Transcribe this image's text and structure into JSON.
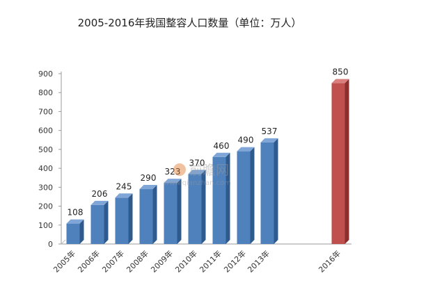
{
  "chart_data": {
    "type": "bar",
    "title": "2005-2016年我国整容人口数量（单位：万人）",
    "xlabel": "",
    "ylabel": "",
    "categories": [
      "2005年",
      "2006年",
      "2007年",
      "2008年",
      "2009年",
      "2010年",
      "2011年",
      "2012年",
      "2013年",
      "2016年"
    ],
    "values": [
      108,
      206,
      245,
      290,
      323,
      370,
      460,
      490,
      537,
      850
    ],
    "ylim": [
      0,
      900
    ],
    "yticks": [
      0,
      100,
      200,
      300,
      400,
      500,
      600,
      700,
      800,
      900
    ],
    "grid": false,
    "legend": "none",
    "colors": {
      "bar_front": "#4f81bd",
      "bar_side": "#2f5a8e",
      "bar_top": "#7fa6d6",
      "highlight_front": "#c0504d",
      "highlight_side": "#8a2f2d",
      "highlight_top": "#d9807e"
    },
    "highlight_category": "2016年"
  },
  "watermark": {
    "brand": "前瞻网",
    "url": "www.qianzhan.com"
  }
}
